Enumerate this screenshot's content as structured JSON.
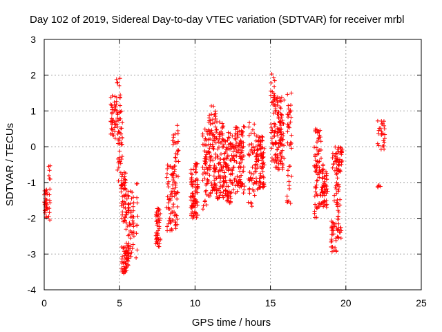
{
  "chart_data": {
    "type": "scatter",
    "title": "Day 102 of 2019, Sidereal Day-to-day VTEC variation (SDTVAR) for receiver mrbl",
    "xlabel": "GPS time / hours",
    "ylabel": "SDTVAR / TECUs",
    "xlim": [
      0,
      25
    ],
    "ylim": [
      -4,
      3
    ],
    "xticks": [
      0,
      5,
      10,
      15,
      20,
      25
    ],
    "yticks": [
      -4,
      -3,
      -2,
      -1,
      0,
      1,
      2,
      3
    ],
    "grid": true,
    "marker": "+",
    "marker_color": "#ff0000",
    "clusters": [
      {
        "x0": 0.0,
        "x1": 0.2,
        "y0": -2.0,
        "y1": -1.15,
        "n": 30
      },
      {
        "x0": 0.3,
        "x1": 0.4,
        "y0": -2.2,
        "y1": -0.45,
        "n": 14
      },
      {
        "x0": 4.4,
        "x1": 4.85,
        "y0": 0.2,
        "y1": 1.45,
        "n": 40
      },
      {
        "x0": 4.75,
        "x1": 5.05,
        "y0": 0.95,
        "y1": 2.05,
        "n": 14
      },
      {
        "x0": 4.85,
        "x1": 5.2,
        "y0": -1.2,
        "y1": 1.0,
        "n": 45
      },
      {
        "x0": 5.1,
        "x1": 5.4,
        "y0": -2.1,
        "y1": -0.6,
        "n": 45
      },
      {
        "x0": 5.1,
        "x1": 5.6,
        "y0": -3.55,
        "y1": -2.8,
        "n": 45
      },
      {
        "x0": 5.4,
        "x1": 5.95,
        "y0": -3.2,
        "y1": -1.2,
        "n": 75
      },
      {
        "x0": 6.05,
        "x1": 6.25,
        "y0": -3.5,
        "y1": -0.95,
        "n": 10
      },
      {
        "x0": 7.4,
        "x1": 7.7,
        "y0": -2.8,
        "y1": -1.7,
        "n": 45
      },
      {
        "x0": 8.1,
        "x1": 8.5,
        "y0": -2.4,
        "y1": -0.45,
        "n": 40
      },
      {
        "x0": 8.5,
        "x1": 8.9,
        "y0": -2.3,
        "y1": 0.6,
        "n": 65
      },
      {
        "x0": 9.7,
        "x1": 10.2,
        "y0": -2.0,
        "y1": -0.45,
        "n": 80
      },
      {
        "x0": 10.5,
        "x1": 10.9,
        "y0": -1.8,
        "y1": 0.5,
        "n": 55
      },
      {
        "x0": 10.9,
        "x1": 11.4,
        "y0": -1.4,
        "y1": 1.15,
        "n": 85
      },
      {
        "x0": 11.4,
        "x1": 12.0,
        "y0": -1.5,
        "y1": 0.7,
        "n": 90
      },
      {
        "x0": 12.0,
        "x1": 12.6,
        "y0": -1.6,
        "y1": 0.4,
        "n": 85
      },
      {
        "x0": 12.6,
        "x1": 13.3,
        "y0": -1.3,
        "y1": 0.6,
        "n": 95
      },
      {
        "x0": 13.5,
        "x1": 14.0,
        "y0": -1.7,
        "y1": 0.7,
        "n": 45
      },
      {
        "x0": 14.0,
        "x1": 14.6,
        "y0": -1.2,
        "y1": 0.3,
        "n": 90
      },
      {
        "x0": 15.0,
        "x1": 15.3,
        "y0": -0.6,
        "y1": 2.05,
        "n": 40
      },
      {
        "x0": 15.3,
        "x1": 15.9,
        "y0": -0.7,
        "y1": 1.4,
        "n": 105
      },
      {
        "x0": 16.1,
        "x1": 16.4,
        "y0": -1.8,
        "y1": 1.5,
        "n": 40
      },
      {
        "x0": 17.9,
        "x1": 18.4,
        "y0": -2.0,
        "y1": 0.5,
        "n": 75
      },
      {
        "x0": 18.4,
        "x1": 18.8,
        "y0": -1.7,
        "y1": -0.5,
        "n": 55
      },
      {
        "x0": 19.0,
        "x1": 19.4,
        "y0": -2.95,
        "y1": -2.0,
        "n": 30
      },
      {
        "x0": 19.1,
        "x1": 19.6,
        "y0": -1.7,
        "y1": 0.0,
        "n": 45
      },
      {
        "x0": 19.4,
        "x1": 19.7,
        "y0": -2.6,
        "y1": -1.4,
        "n": 25
      },
      {
        "x0": 19.5,
        "x1": 19.8,
        "y0": -0.7,
        "y1": 0.0,
        "n": 20
      },
      {
        "x0": 22.1,
        "x1": 22.3,
        "y0": -1.2,
        "y1": -1.05,
        "n": 5
      },
      {
        "x0": 22.1,
        "x1": 22.6,
        "y0": -0.1,
        "y1": 0.75,
        "n": 25
      }
    ]
  }
}
